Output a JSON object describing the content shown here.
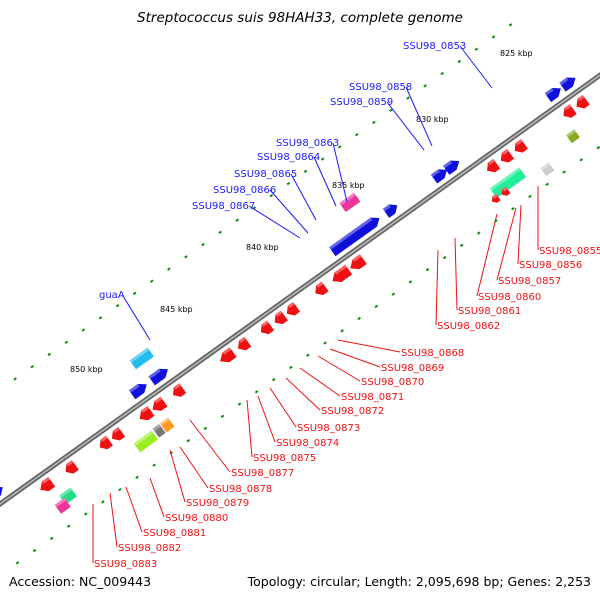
{
  "title": "Streptococcus suis 98HAH33, complete genome",
  "footer": {
    "accession": "Accession: NC_009443",
    "summary": "Topology: circular; Length: 2,095,698 bp; Genes: 2,253"
  },
  "colors": {
    "backbone": "#777777",
    "forward_gene": "#1010dd",
    "reverse_gene": "#ee1111",
    "tick": "#118811",
    "blue_label": "#1a1aff",
    "red_label": "#ee1111"
  },
  "scale_labels": [
    "825 kbp",
    "830 kbp",
    "835 kbp",
    "840 kbp",
    "845 kbp",
    "850 kbp"
  ],
  "forward_labels": [
    "SSU98_0853",
    "SSU98_0858",
    "SSU98_0859",
    "SSU98_0863",
    "SSU98_0864",
    "SSU98_0865",
    "SSU98_0866",
    "SSU98_0867",
    "guaA"
  ],
  "reverse_labels": [
    "SSU98_0855",
    "SSU98_0856",
    "SSU98_0857",
    "SSU98_0860",
    "SSU98_0861",
    "SSU98_0862",
    "SSU98_0868",
    "SSU98_0869",
    "SSU98_0870",
    "SSU98_0871",
    "SSU98_0872",
    "SSU98_0873",
    "SSU98_0874",
    "SSU98_0875",
    "SSU98_0877",
    "SSU98_0878",
    "SSU98_0879",
    "SSU98_0880",
    "SSU98_0881",
    "SSU98_0882",
    "SSU98_0883"
  ]
}
